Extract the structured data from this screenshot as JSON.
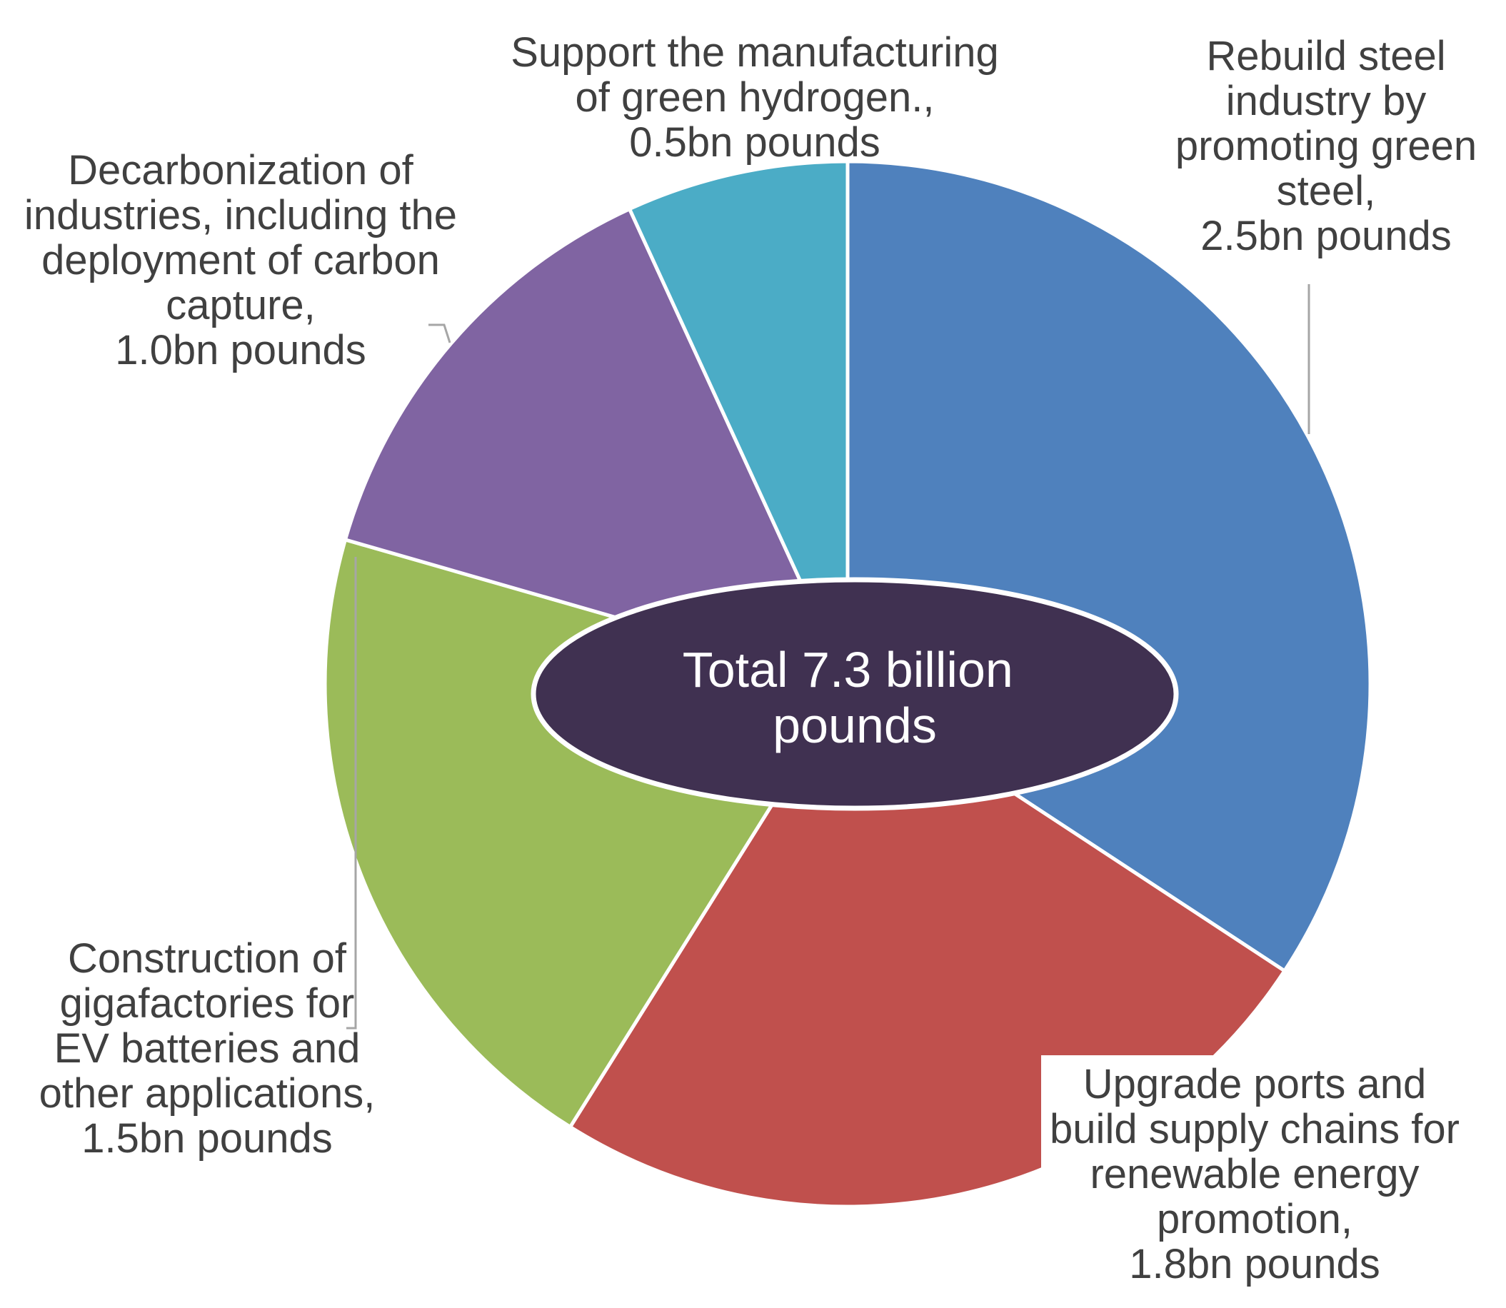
{
  "chart_data": {
    "type": "pie",
    "unit": "bn pounds",
    "center_label": [
      "Total 7.3 billion",
      "pounds"
    ],
    "slices": [
      {
        "name": "Rebuild steel industry by promoting green steel",
        "value": 2.5,
        "color": "#4f81bd",
        "label_lines": [
          "Rebuild steel",
          "industry by",
          "promoting green",
          "steel,",
          "2.5bn pounds"
        ]
      },
      {
        "name": "Upgrade ports and build supply chains for renewable energy promotion",
        "value": 1.8,
        "color": "#c0504d",
        "label_lines": [
          "Upgrade ports and",
          "build supply chains for",
          "renewable energy",
          "promotion,",
          "1.8bn pounds"
        ]
      },
      {
        "name": "Construction of gigafactories for EV batteries and other applications",
        "value": 1.5,
        "color": "#9bbb59",
        "label_lines": [
          "Construction of",
          "gigafactories for",
          "EV batteries and",
          "other applications,",
          "1.5bn pounds"
        ]
      },
      {
        "name": "Decarbonization of industries, including the deployment of carbon capture",
        "value": 1.0,
        "color": "#8064a2",
        "label_lines": [
          "Decarbonization of",
          "industries, including the",
          "deployment of carbon",
          "capture,",
          "1.0bn pounds"
        ]
      },
      {
        "name": "Support the manufacturing of green hydrogen.",
        "value": 0.5,
        "color": "#4bacc6",
        "label_lines": [
          "Support the manufacturing",
          "of green hydrogen.,",
          "0.5bn pounds"
        ]
      }
    ],
    "center_color": "#403151",
    "start_angle_deg": 0,
    "direction": "clockwise"
  }
}
